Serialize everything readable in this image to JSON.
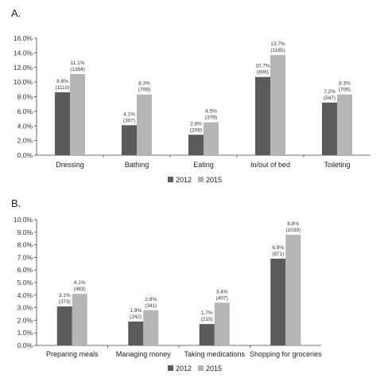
{
  "colors": {
    "s2012": "#5b5b5b",
    "s2015": "#b5b5b5"
  },
  "chart_data": [
    {
      "type": "bar",
      "panel_label": "A.",
      "categories": [
        "Dressing",
        "Bathing",
        "Eating",
        "In/out of bed",
        "Toileting"
      ],
      "ylim": [
        0,
        16
      ],
      "yticks": [
        0,
        2,
        4,
        6,
        8,
        10,
        12,
        14,
        16
      ],
      "ytick_labels": [
        "0.0%",
        "2.0%",
        "4.0%",
        "6.0%",
        "8.0%",
        "10.0%",
        "12.0%",
        "14.0%",
        "16.0%"
      ],
      "series": [
        {
          "name": "2012",
          "values": [
            8.6,
            4.1,
            2.8,
            10.7,
            7.2
          ],
          "labels": [
            [
              "8.6%",
              "(1110)"
            ],
            [
              "4.1%",
              "(307)"
            ],
            [
              "2.8%",
              "(209)"
            ],
            [
              "10.7%",
              "(806)"
            ],
            [
              "7.2%",
              "(547)"
            ]
          ]
        },
        {
          "name": "2015",
          "values": [
            11.1,
            8.3,
            4.5,
            13.7,
            8.3
          ],
          "labels": [
            [
              "11.1%",
              "(1364)"
            ],
            [
              "8.3%",
              "(709)"
            ],
            [
              "4.5%",
              "(379)"
            ],
            [
              "13.7%",
              "(1165)"
            ],
            [
              "8.3%",
              "(706)"
            ]
          ]
        }
      ],
      "legend_position": "bottom-center"
    },
    {
      "type": "bar",
      "panel_label": "B.",
      "categories": [
        "Preparing meals",
        "Managing money",
        "Taking medications",
        "Shopping for groceries"
      ],
      "ylim": [
        0,
        10
      ],
      "yticks": [
        0,
        1,
        2,
        3,
        4,
        5,
        6,
        7,
        8,
        9,
        10
      ],
      "ytick_labels": [
        "0.0%",
        "1.0%",
        "2.0%",
        "3.0%",
        "4.0%",
        "5.0%",
        "6.0%",
        "7.0%",
        "8.0%",
        "9.0%",
        "10.0%"
      ],
      "series": [
        {
          "name": "2012",
          "values": [
            3.1,
            1.9,
            1.7,
            6.9
          ],
          "labels": [
            [
              "3.1%",
              "(373)"
            ],
            [
              "1.9%",
              "(242)"
            ],
            [
              "1.7%",
              "(219)"
            ],
            [
              "6.9%",
              "(871)"
            ]
          ]
        },
        {
          "name": "2015",
          "values": [
            4.1,
            2.8,
            3.4,
            8.8
          ],
          "labels": [
            [
              "4.1%",
              "(483)"
            ],
            [
              "2.8%",
              "(341)"
            ],
            [
              "3.4%",
              "(407)"
            ],
            [
              "8.8%",
              "(1039)"
            ]
          ]
        }
      ],
      "legend_position": "bottom-center"
    }
  ]
}
